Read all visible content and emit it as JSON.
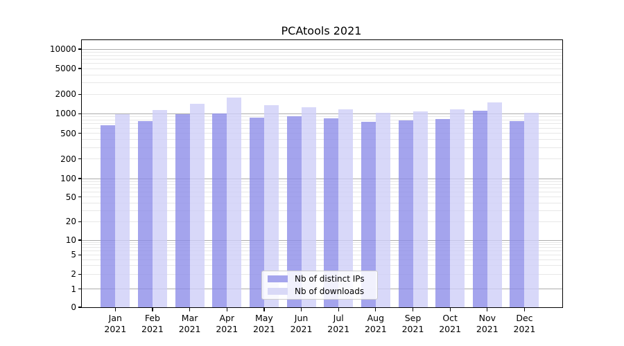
{
  "title": "PCAtools 2021",
  "legend": {
    "items": [
      {
        "label": "Nb of distinct IPs"
      },
      {
        "label": "Nb of downloads"
      }
    ]
  },
  "colors": {
    "distinct_ips_bar": "rgba(138,138,232,0.78)",
    "downloads_bar": "rgba(206,206,247,0.8)",
    "distinct_ips_swatch": "#a5a5ed",
    "downloads_swatch": "#d9d9f7",
    "grid_major": "#ababab",
    "grid_minor": "#e7e7e7",
    "spine": "#000000",
    "background": "#ffffff"
  },
  "chart_data": {
    "type": "bar",
    "title": "PCAtools 2021",
    "categories": [
      "Jan 2021",
      "Feb 2021",
      "Mar 2021",
      "Apr 2021",
      "May 2021",
      "Jun 2021",
      "Jul 2021",
      "Aug 2021",
      "Sep 2021",
      "Oct 2021",
      "Nov 2021",
      "Dec 2021"
    ],
    "series": [
      {
        "name": "Nb of distinct IPs",
        "values": [
          670,
          760,
          990,
          1000,
          860,
          920,
          850,
          750,
          780,
          830,
          1110,
          775
        ]
      },
      {
        "name": "Nb of downloads",
        "values": [
          990,
          1130,
          1420,
          1780,
          1340,
          1250,
          1170,
          1040,
          1090,
          1180,
          1480,
          1040
        ]
      }
    ],
    "xlabel": "",
    "ylabel": "",
    "yscale": "symlog",
    "yticks": [
      0,
      1,
      2,
      5,
      10,
      20,
      50,
      100,
      200,
      500,
      1000,
      2000,
      5000,
      10000
    ],
    "ylim": [
      0,
      10000
    ],
    "grid": true,
    "legend_position": "lower center"
  }
}
